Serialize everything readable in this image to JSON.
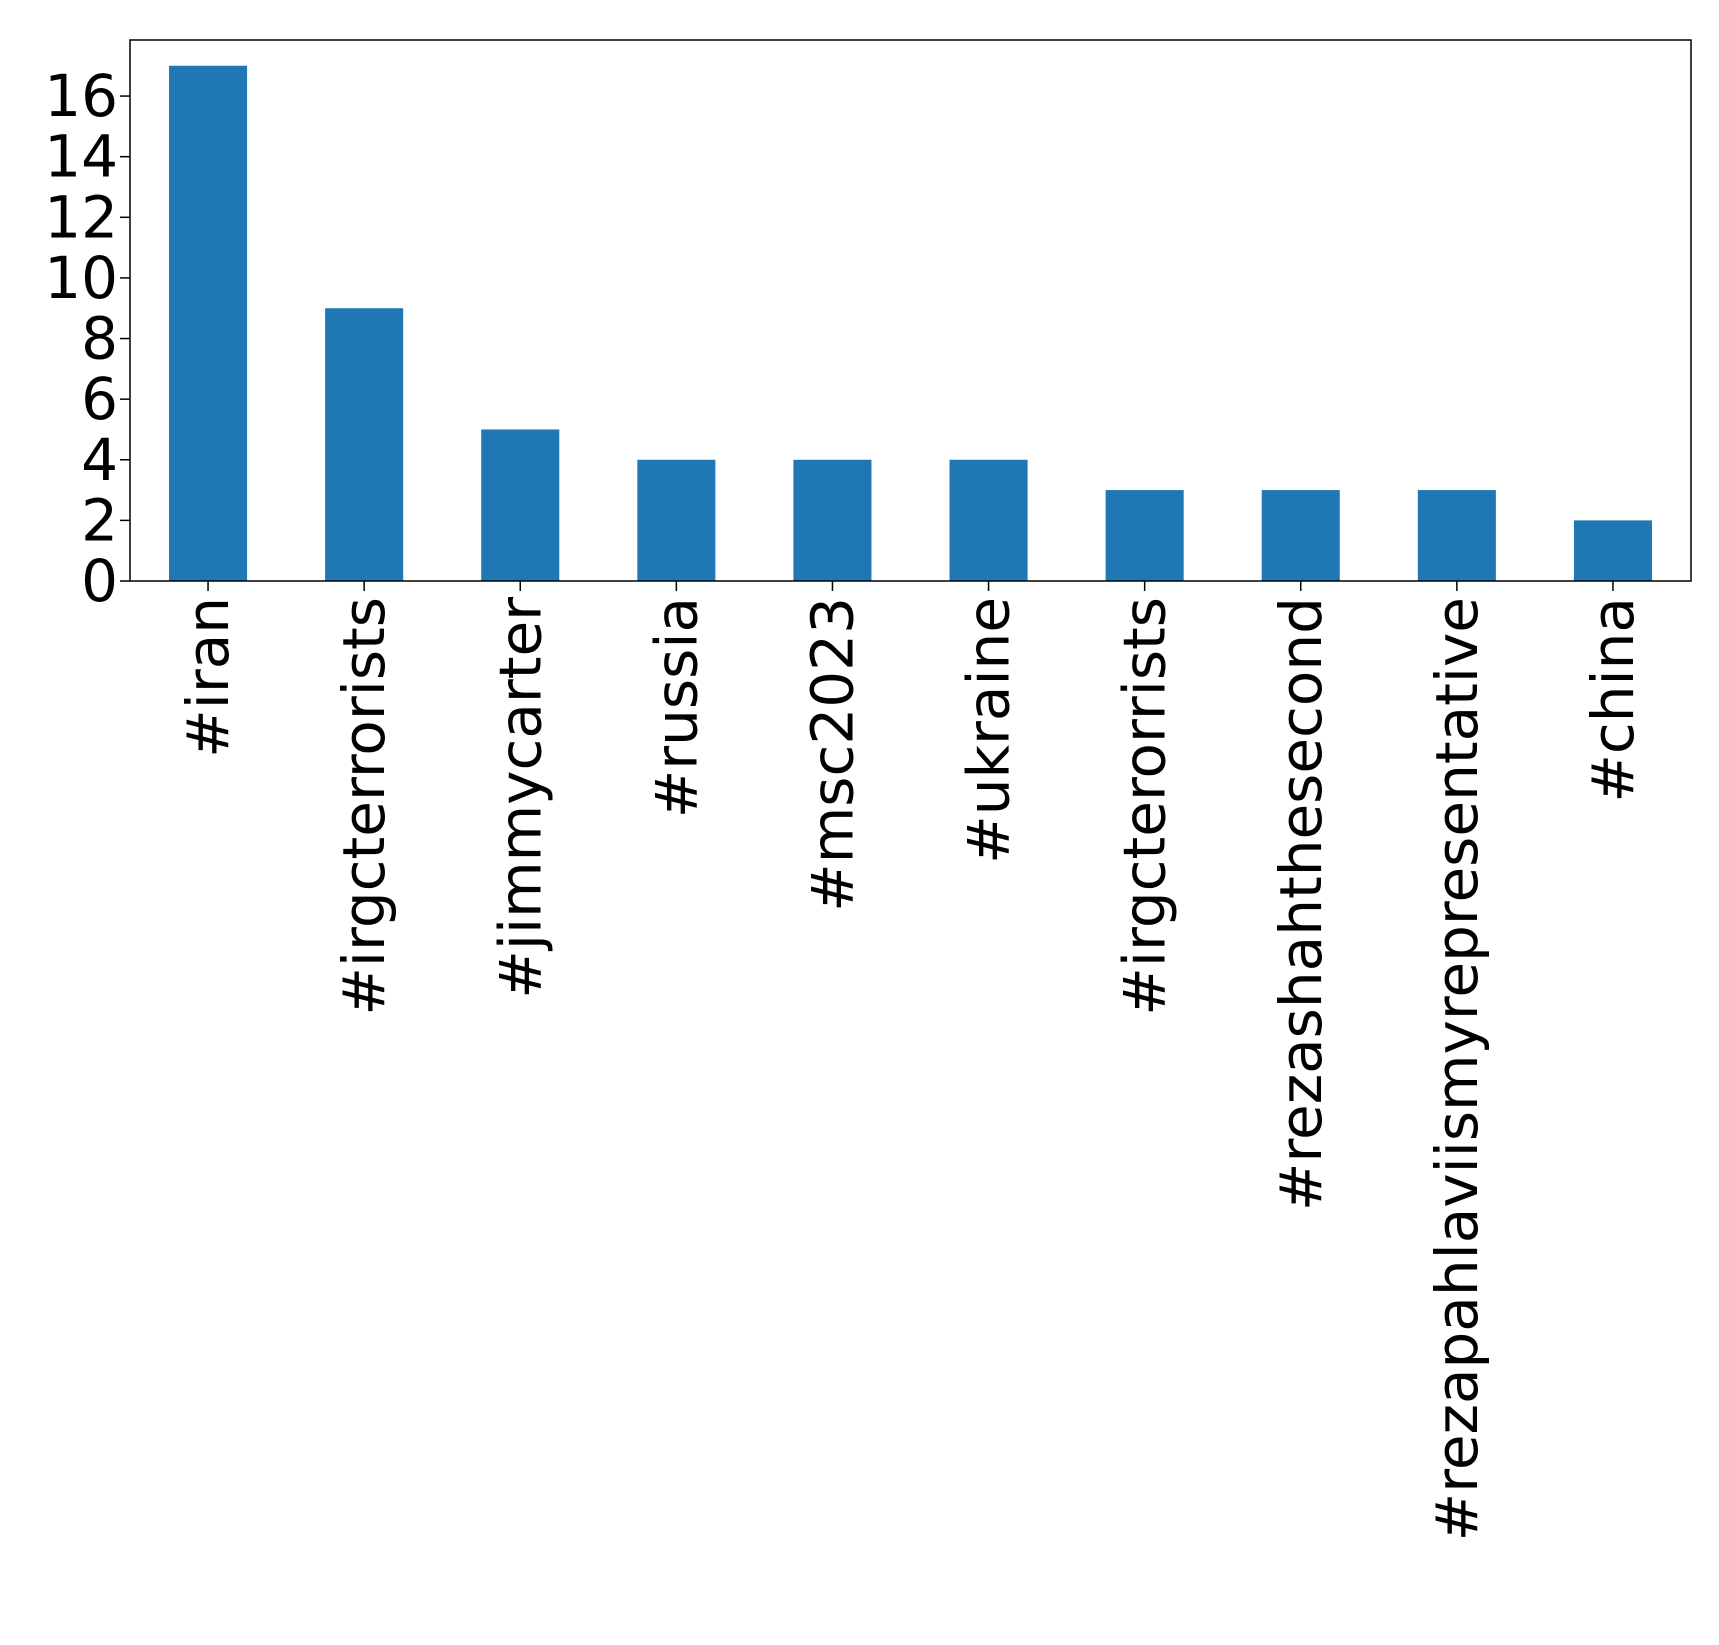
{
  "chart_data": {
    "type": "bar",
    "title": "",
    "xlabel": "",
    "ylabel": "",
    "categories": [
      "#iran",
      "#irgcterrorists",
      "#jimmycarter",
      "#russia",
      "#msc2023",
      "#ukraine",
      "#irgcterorrists",
      "#rezashahthesecond",
      "#rezapahlaviismyrepresentative",
      "#china"
    ],
    "values": [
      17,
      9,
      5,
      4,
      4,
      4,
      3,
      3,
      3,
      2
    ],
    "ylim": [
      0,
      17.85
    ],
    "yticks": [
      0,
      2,
      4,
      6,
      8,
      10,
      12,
      14,
      16
    ],
    "ytick_labels": [
      "0",
      "2",
      "4",
      "6",
      "8",
      "10",
      "12",
      "14",
      "16"
    ],
    "bar_color": "#1f77b4",
    "grid": false,
    "legend": "none"
  }
}
